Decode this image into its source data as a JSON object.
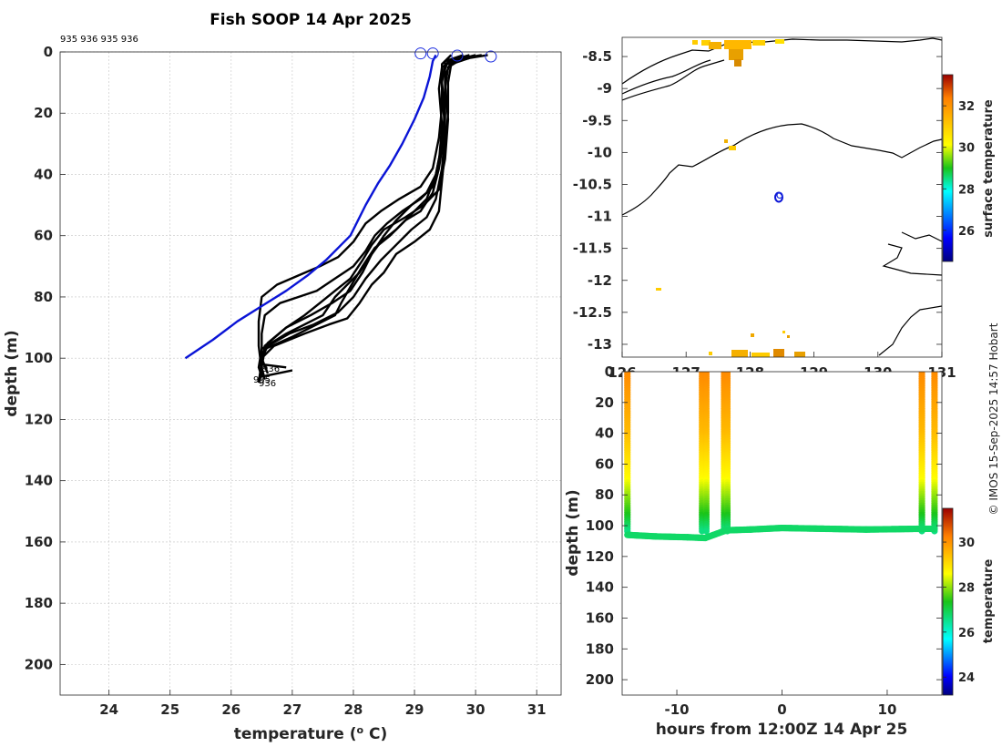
{
  "title": "Fish SOOP 14 Apr 2025",
  "ids_label": "935 936 935 936",
  "credit": "© IMOS 15-Sep-2025 14:57 Hobart",
  "profile_labels": [
    "936",
    "935",
    "936"
  ],
  "colors": {
    "profile": "#000000",
    "mean_profile": "#0a14d6",
    "marker": "#1a2ce0"
  },
  "chart_data": [
    {
      "type": "line",
      "name": "profiles",
      "title": "Fish SOOP 14 Apr 2025",
      "xlabel": "temperature (o C)",
      "ylabel": "depth (m)",
      "xlim": [
        23.2,
        31.4
      ],
      "ylim": [
        210,
        0
      ],
      "xticks": [
        24,
        25,
        26,
        27,
        28,
        29,
        30,
        31
      ],
      "yticks": [
        0,
        20,
        40,
        60,
        80,
        100,
        120,
        140,
        160,
        180,
        200
      ],
      "surface_markers": [
        [
          29.1,
          0.5
        ],
        [
          29.3,
          0.5
        ],
        [
          29.7,
          1.2
        ],
        [
          30.25,
          1.5
        ]
      ],
      "series": [
        {
          "name": "blue",
          "color": "#0a14d6",
          "points": [
            [
              29.35,
              1
            ],
            [
              29.3,
              3
            ],
            [
              29.25,
              8
            ],
            [
              29.15,
              15
            ],
            [
              29.0,
              22
            ],
            [
              28.8,
              30
            ],
            [
              28.6,
              37
            ],
            [
              28.4,
              43
            ],
            [
              28.2,
              50
            ],
            [
              28.05,
              56
            ],
            [
              27.95,
              60
            ],
            [
              27.8,
              63
            ],
            [
              27.55,
              68
            ],
            [
              27.25,
              73
            ],
            [
              26.9,
              78
            ],
            [
              26.5,
              83
            ],
            [
              26.1,
              88
            ],
            [
              25.7,
              94
            ],
            [
              25.25,
              100
            ]
          ]
        },
        {
          "name": "p1",
          "color": "#000000",
          "points": [
            [
              30.2,
              1
            ],
            [
              29.9,
              2
            ],
            [
              29.5,
              4
            ],
            [
              29.45,
              10
            ],
            [
              29.5,
              20
            ],
            [
              29.45,
              30
            ],
            [
              29.35,
              40
            ],
            [
              29.2,
              48
            ],
            [
              29.0,
              52
            ],
            [
              28.7,
              58
            ],
            [
              28.45,
              62
            ],
            [
              28.3,
              66
            ],
            [
              28.1,
              72
            ],
            [
              27.9,
              76
            ],
            [
              27.7,
              80
            ],
            [
              27.5,
              86
            ],
            [
              27.3,
              88
            ],
            [
              26.9,
              92
            ],
            [
              26.5,
              97
            ],
            [
              26.45,
              103
            ],
            [
              26.5,
              106
            ]
          ]
        },
        {
          "name": "p2",
          "color": "#000000",
          "points": [
            [
              30.1,
              1
            ],
            [
              29.8,
              2
            ],
            [
              29.55,
              5
            ],
            [
              29.5,
              12
            ],
            [
              29.5,
              25
            ],
            [
              29.4,
              38
            ],
            [
              29.3,
              46
            ],
            [
              29.1,
              52
            ],
            [
              28.85,
              55
            ],
            [
              28.6,
              60
            ],
            [
              28.35,
              64
            ],
            [
              28.15,
              70
            ],
            [
              28.0,
              75
            ],
            [
              27.8,
              82
            ],
            [
              27.7,
              86
            ],
            [
              27.5,
              88
            ],
            [
              27.0,
              93
            ],
            [
              26.55,
              97
            ],
            [
              26.5,
              103
            ],
            [
              26.55,
              107
            ]
          ]
        },
        {
          "name": "p3",
          "color": "#000000",
          "points": [
            [
              29.9,
              2
            ],
            [
              29.6,
              4
            ],
            [
              29.55,
              10
            ],
            [
              29.55,
              20
            ],
            [
              29.5,
              32
            ],
            [
              29.45,
              42
            ],
            [
              29.4,
              52
            ],
            [
              29.25,
              58
            ],
            [
              29.0,
              62
            ],
            [
              28.7,
              66
            ],
            [
              28.5,
              72
            ],
            [
              28.3,
              76
            ],
            [
              28.1,
              82
            ],
            [
              27.9,
              87
            ],
            [
              27.6,
              89
            ],
            [
              27.2,
              92
            ],
            [
              26.7,
              96
            ],
            [
              26.5,
              100
            ],
            [
              26.5,
              106
            ],
            [
              27.0,
              104
            ]
          ]
        },
        {
          "name": "p4",
          "color": "#000000",
          "points": [
            [
              29.8,
              1
            ],
            [
              29.5,
              3
            ],
            [
              29.5,
              10
            ],
            [
              29.55,
              22
            ],
            [
              29.5,
              35
            ],
            [
              29.4,
              45
            ],
            [
              29.15,
              50
            ],
            [
              28.85,
              54
            ],
            [
              28.5,
              58
            ],
            [
              28.3,
              63
            ],
            [
              28.15,
              68
            ],
            [
              27.95,
              74
            ],
            [
              27.7,
              78
            ],
            [
              27.45,
              82
            ],
            [
              27.2,
              86
            ],
            [
              26.9,
              90
            ],
            [
              26.6,
              95
            ],
            [
              26.5,
              101
            ],
            [
              26.45,
              108
            ]
          ]
        },
        {
          "name": "p5",
          "color": "#000000",
          "points": [
            [
              29.7,
              2
            ],
            [
              29.45,
              5
            ],
            [
              29.4,
              12
            ],
            [
              29.45,
              24
            ],
            [
              29.4,
              36
            ],
            [
              29.3,
              44
            ],
            [
              29.1,
              48
            ],
            [
              28.8,
              52
            ],
            [
              28.55,
              56
            ],
            [
              28.35,
              60
            ],
            [
              28.2,
              65
            ],
            [
              28.0,
              70
            ],
            [
              27.7,
              74
            ],
            [
              27.4,
              78
            ],
            [
              27.1,
              80
            ],
            [
              26.8,
              82
            ],
            [
              26.55,
              86
            ],
            [
              26.5,
              92
            ],
            [
              26.5,
              100
            ],
            [
              26.6,
              105
            ]
          ]
        },
        {
          "name": "p6",
          "color": "#000000",
          "points": [
            [
              29.9,
              1
            ],
            [
              29.55,
              3
            ],
            [
              29.45,
              8
            ],
            [
              29.45,
              18
            ],
            [
              29.4,
              28
            ],
            [
              29.3,
              38
            ],
            [
              29.1,
              44
            ],
            [
              28.75,
              48
            ],
            [
              28.45,
              52
            ],
            [
              28.2,
              56
            ],
            [
              28.0,
              62
            ],
            [
              27.75,
              67
            ],
            [
              27.45,
              70
            ],
            [
              27.1,
              73
            ],
            [
              26.75,
              76
            ],
            [
              26.5,
              80
            ],
            [
              26.45,
              88
            ],
            [
              26.45,
              96
            ],
            [
              26.5,
              104
            ],
            [
              26.45,
              107
            ]
          ]
        },
        {
          "name": "p7",
          "color": "#000000",
          "points": [
            [
              30.0,
              1
            ],
            [
              29.6,
              3
            ],
            [
              29.5,
              8
            ],
            [
              29.5,
              18
            ],
            [
              29.45,
              30
            ],
            [
              29.35,
              40
            ],
            [
              29.2,
              46
            ],
            [
              28.95,
              50
            ],
            [
              28.7,
              55
            ],
            [
              28.5,
              60
            ],
            [
              28.3,
              66
            ],
            [
              28.15,
              72
            ],
            [
              27.95,
              78
            ],
            [
              27.65,
              82
            ],
            [
              27.3,
              86
            ],
            [
              26.9,
              90
            ],
            [
              26.55,
              96
            ],
            [
              26.5,
              102
            ],
            [
              26.9,
              103
            ]
          ]
        },
        {
          "name": "p8",
          "color": "#000000",
          "points": [
            [
              29.6,
              1
            ],
            [
              29.45,
              4
            ],
            [
              29.45,
              12
            ],
            [
              29.5,
              26
            ],
            [
              29.45,
              38
            ],
            [
              29.35,
              48
            ],
            [
              29.2,
              54
            ],
            [
              28.95,
              58
            ],
            [
              28.7,
              63
            ],
            [
              28.45,
              68
            ],
            [
              28.2,
              74
            ],
            [
              28.0,
              80
            ],
            [
              27.75,
              85
            ],
            [
              27.35,
              89
            ],
            [
              26.95,
              92
            ],
            [
              26.6,
              96
            ],
            [
              26.5,
              100
            ],
            [
              26.5,
              105
            ],
            [
              26.45,
              108
            ]
          ]
        }
      ]
    },
    {
      "type": "map",
      "name": "track-map",
      "xlim": [
        126,
        131
      ],
      "ylim": [
        -13.2,
        -8.2
      ],
      "xticks": [
        126,
        127,
        128,
        129,
        130,
        131
      ],
      "yticks": [
        -8.5,
        -9,
        -9.5,
        -10,
        -10.5,
        -11,
        -11.5,
        -12,
        -12.5,
        -13
      ],
      "ytick_labels": [
        "-8.5",
        "-9",
        "-9.5",
        "-10",
        "-10.5",
        "-11",
        "-11.5",
        "-12",
        "-12.5",
        "-13"
      ],
      "xtick_labels": [
        "126",
        "127",
        "128",
        "129",
        "130",
        "131"
      ],
      "track_position": [
        128.45,
        -10.7
      ],
      "colorbar": {
        "label": "surface temperature",
        "range": [
          24.5,
          33.5
        ],
        "ticks": [
          26,
          28,
          30,
          32
        ]
      }
    },
    {
      "type": "scatter",
      "name": "depth-time",
      "xlabel": "hours from 12:00Z 14 Apr 25",
      "ylabel": "depth (m)",
      "xlim": [
        -15.2,
        15.2
      ],
      "ylim": [
        210,
        0
      ],
      "xticks": [
        -10,
        0,
        10
      ],
      "yticks": [
        0,
        20,
        40,
        60,
        80,
        100,
        120,
        140,
        160,
        180,
        200
      ],
      "colorbar": {
        "label": "temperature",
        "range": [
          23.2,
          31.5
        ],
        "ticks": [
          24,
          26,
          28,
          30
        ]
      },
      "bottom_depth": [
        [
          -14.7,
          106
        ],
        [
          -12,
          107
        ],
        [
          -9,
          107.5
        ],
        [
          -7.3,
          108
        ],
        [
          -5.3,
          103
        ],
        [
          -3,
          102.5
        ],
        [
          0,
          101.5
        ],
        [
          4,
          102
        ],
        [
          8,
          102.5
        ],
        [
          13.5,
          102
        ],
        [
          14.5,
          102
        ]
      ],
      "descents_hours": [
        -14.7,
        -7.6,
        -7.2,
        -5.5,
        -5.2,
        13.3,
        14.5
      ]
    }
  ]
}
